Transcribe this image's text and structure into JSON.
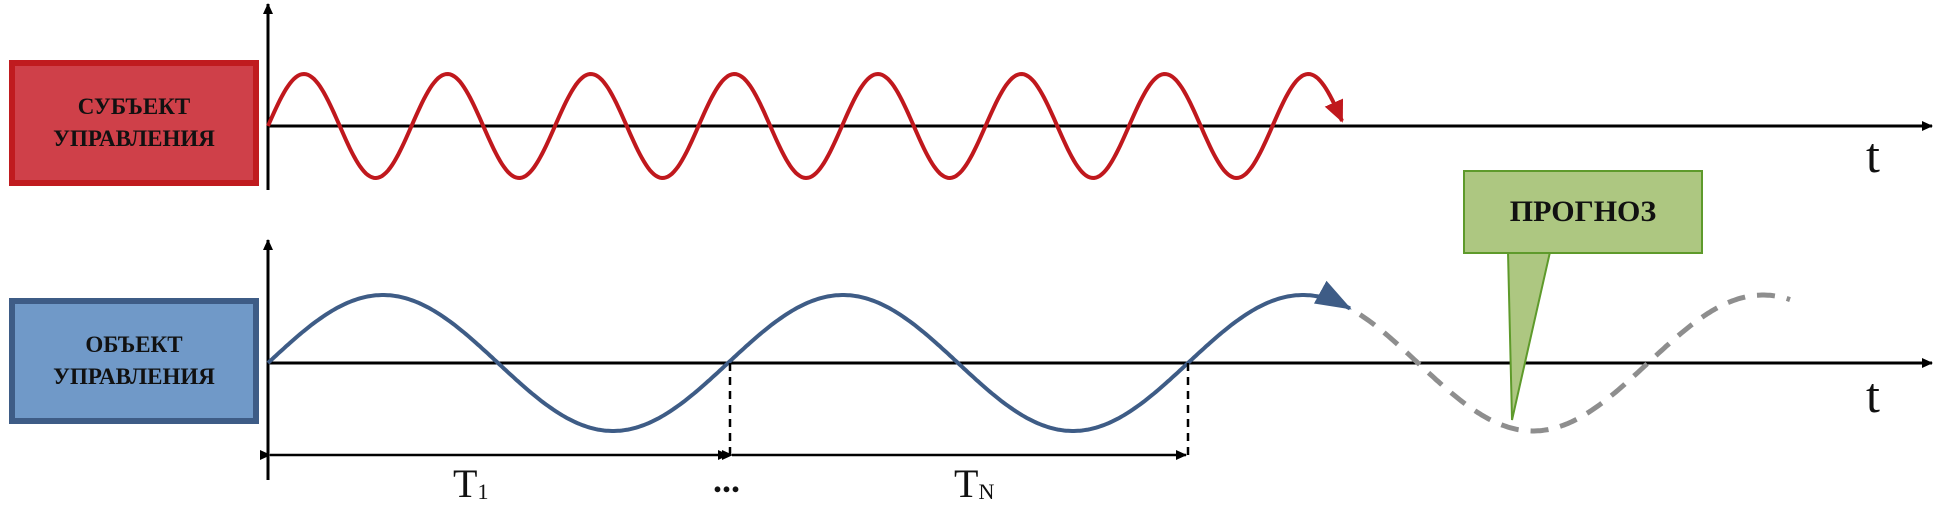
{
  "subject_box": {
    "line1": "СУБЪЕКТ",
    "line2": "УПРАВЛЕНИЯ"
  },
  "object_box": {
    "line1": "ОБЪЕКТ",
    "line2": "УПРАВЛЕНИЯ"
  },
  "forecast": {
    "label": "ПРОГНОЗ"
  },
  "axes": {
    "top_label": "t",
    "bottom_label": "t"
  },
  "periods": {
    "first": "T",
    "first_sub": "1",
    "ellipsis": "...",
    "last": "T",
    "last_sub": "N"
  },
  "colors": {
    "subject_fill": "#cf4049",
    "subject_border": "#c01b1f",
    "subject_wave": "#c0181d",
    "object_fill": "#7099c8",
    "object_border": "#3e5c86",
    "object_wave": "#3e5c86",
    "forecast_fill": "#adc781",
    "forecast_border": "#5e9a2b",
    "forecast_wave": "#8e8e8e"
  }
}
